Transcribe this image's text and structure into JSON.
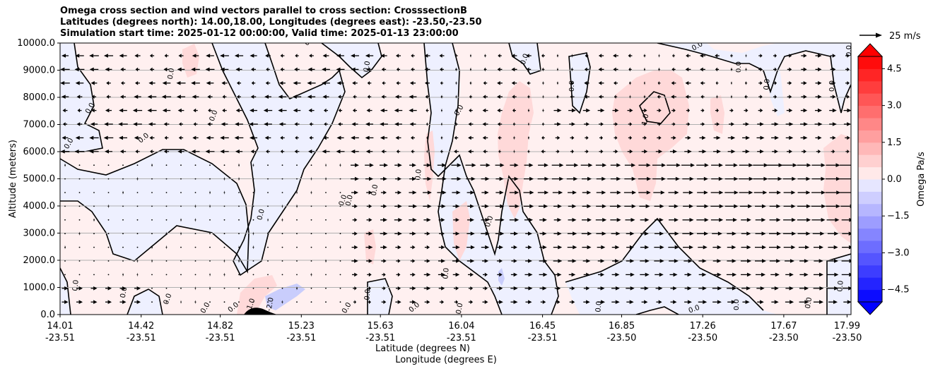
{
  "chart_data": {
    "type": "heatmap",
    "title_lines": [
      "Omega cross section and wind vectors parallel to cross section: CrosssectionB",
      "Latitudes (degrees north): 14.00,18.00, Longitudes (degrees east): -23.50,-23.50",
      "Simulation start time: 2025-01-12 00:00:00, Valid time: 2025-01-13 23:00:00"
    ],
    "ylabel": "Altitude (meters)",
    "xlabel_lat": "Latitude (degrees N)",
    "xlabel_lon": "Longitude (degrees E)",
    "ylim": [
      0,
      10000
    ],
    "yticks": [
      "0.0",
      "1000.0",
      "2000.0",
      "3000.0",
      "4000.0",
      "5000.0",
      "6000.0",
      "7000.0",
      "8000.0",
      "9000.0",
      "10000.0"
    ],
    "x_ticks": [
      {
        "pos": 0.0,
        "lat": "14.01",
        "lon": "-23.51"
      },
      {
        "pos": 0.1025,
        "lat": "14.42",
        "lon": "-23.51"
      },
      {
        "pos": 0.2025,
        "lat": "14.82",
        "lon": "-23.51"
      },
      {
        "pos": 0.305,
        "lat": "15.23",
        "lon": "-23.51"
      },
      {
        "pos": 0.405,
        "lat": "15.63",
        "lon": "-23.51"
      },
      {
        "pos": 0.5075,
        "lat": "16.04",
        "lon": "-23.51"
      },
      {
        "pos": 0.61,
        "lat": "16.45",
        "lon": "-23.51"
      },
      {
        "pos": 0.71,
        "lat": "16.85",
        "lon": "-23.50"
      },
      {
        "pos": 0.8125,
        "lat": "17.26",
        "lon": "-23.50"
      },
      {
        "pos": 0.915,
        "lat": "17.67",
        "lon": "-23.50"
      },
      {
        "pos": 0.995,
        "lat": "17.99",
        "lon": "-23.50"
      }
    ],
    "colorbar": {
      "label": "Omega Pa/s",
      "range": [
        -5,
        5
      ],
      "ticks": [
        "4.5",
        "3.0",
        "1.5",
        "0.0",
        "−1.5",
        "−3.0",
        "−4.5"
      ],
      "tick_values": [
        4.5,
        3.0,
        1.5,
        0.0,
        -1.5,
        -3.0,
        -4.5
      ]
    },
    "quiver_key": "25 m/s",
    "grid": "horizontal",
    "contour_labels": [
      "0.0",
      "1.0",
      "-2.0"
    ]
  }
}
